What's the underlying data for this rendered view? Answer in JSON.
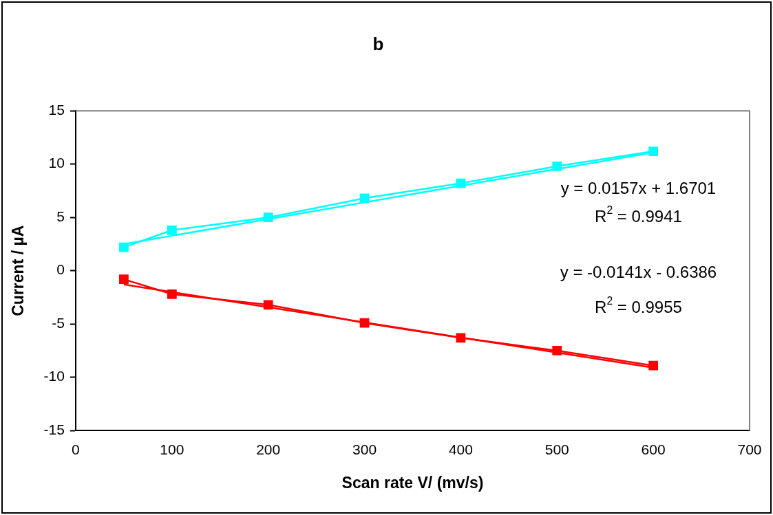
{
  "chart_data": {
    "type": "line",
    "title": "b",
    "xlabel": "Scan rate V/ (mv/s)",
    "ylabel": "Current / µA",
    "xlim": [
      0,
      700
    ],
    "xticks": [
      0,
      100,
      200,
      300,
      400,
      500,
      600,
      700
    ],
    "ylim": [
      -15,
      15
    ],
    "yticks": [
      -15,
      -10,
      -5,
      0,
      5,
      10,
      15
    ],
    "grid": false,
    "legend": false,
    "marker": "square",
    "line_style": "solid",
    "annotations": [
      "y = 0.0157x + 1.6701",
      "R$^{2}$ = 0.9941",
      "y = -0.0141x - 0.6386",
      "R$^{2}$ = 0.9955"
    ],
    "series": [
      {
        "color": "#00ffff",
        "x": [
          50,
          100,
          200,
          300,
          400,
          500,
          600
        ],
        "values": [
          2.2,
          3.8,
          5.0,
          6.8,
          8.2,
          9.8,
          11.2
        ]
      },
      {
        "color": "#ff0000",
        "x": [
          50,
          100,
          200,
          300,
          400,
          500,
          600
        ],
        "values": [
          -0.8,
          -2.2,
          -3.2,
          -4.9,
          -6.3,
          -7.5,
          -8.9
        ]
      },
      {
        "type": "line",
        "marker": "none",
        "color": "#00ffff",
        "x": [
          50,
          600
        ],
        "values": [
          2.5,
          11.1
        ]
      },
      {
        "type": "line",
        "marker": "none",
        "color": "#ff0000",
        "x": [
          50,
          600
        ],
        "values": [
          -1.3,
          -9.1
        ]
      }
    ]
  }
}
